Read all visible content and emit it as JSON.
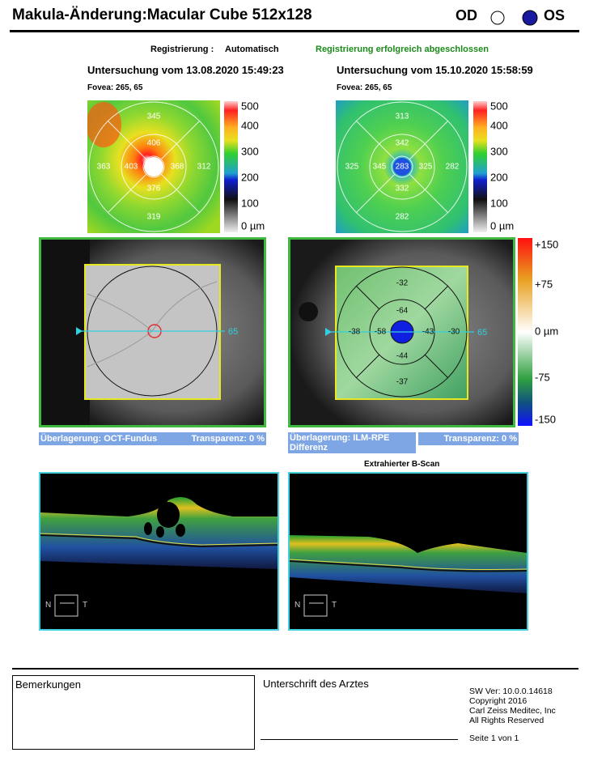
{
  "header": {
    "title": "Makula-Änderung:Macular Cube 512x128",
    "od": "OD",
    "os": "OS"
  },
  "registration": {
    "label": "Registrierung :",
    "value": "Automatisch",
    "status": "Registrierung erfolgreich abgeschlossen"
  },
  "exams": [
    {
      "title": "Untersuchung vom 13.08.2020 15:49:23",
      "fovea": "Fovea: 265, 65",
      "sectors": {
        "outer_superior": "345",
        "inner_superior": "406",
        "outer_left": "363",
        "inner_left": "403",
        "inner_right": "368",
        "outer_right": "312",
        "inner_inferior": "376",
        "outer_inferior": "319"
      }
    },
    {
      "title": "Untersuchung vom 15.10.2020 15:58:59",
      "fovea": "Fovea: 265, 65",
      "sectors": {
        "outer_superior": "313",
        "inner_superior": "342",
        "outer_left": "325",
        "inner_left": "345",
        "center": "283",
        "inner_right": "325",
        "outer_right": "282",
        "inner_inferior": "332",
        "outer_inferior": "282"
      }
    }
  ],
  "thickness_scale": [
    "500",
    "400",
    "300",
    "200",
    "100",
    "0 µm"
  ],
  "difference": {
    "sectors": {
      "outer_superior": "-32",
      "inner_superior": "-64",
      "outer_left": "-38",
      "inner_left": "-58",
      "inner_right": "-43",
      "outer_right": "-30",
      "inner_inferior": "-44",
      "outer_inferior": "-37"
    },
    "scale": [
      "+150",
      "+75",
      "0 µm",
      "-75",
      "-150"
    ]
  },
  "fundus": {
    "scan_label_left": "65",
    "scan_label_right": "65"
  },
  "overlays": [
    {
      "label": "Überlagerung: OCT-Fundus",
      "transparency": "Transparenz: 0 %"
    },
    {
      "label": "Überlagerung: ILM-RPE Differenz",
      "transparency": "Transparenz: 0 %"
    }
  ],
  "bscan": {
    "title": "Extrahierter B-Scan",
    "nasal": "N",
    "temporal": "T"
  },
  "footer": {
    "remarks": "Bemerkungen",
    "signature": "Unterschrift des Arztes",
    "software": [
      "SW Ver: 10.0.0.14618",
      "Copyright 2016",
      "Carl Zeiss Meditec, Inc",
      "All Rights Reserved"
    ],
    "page": "Seite 1 von 1"
  }
}
